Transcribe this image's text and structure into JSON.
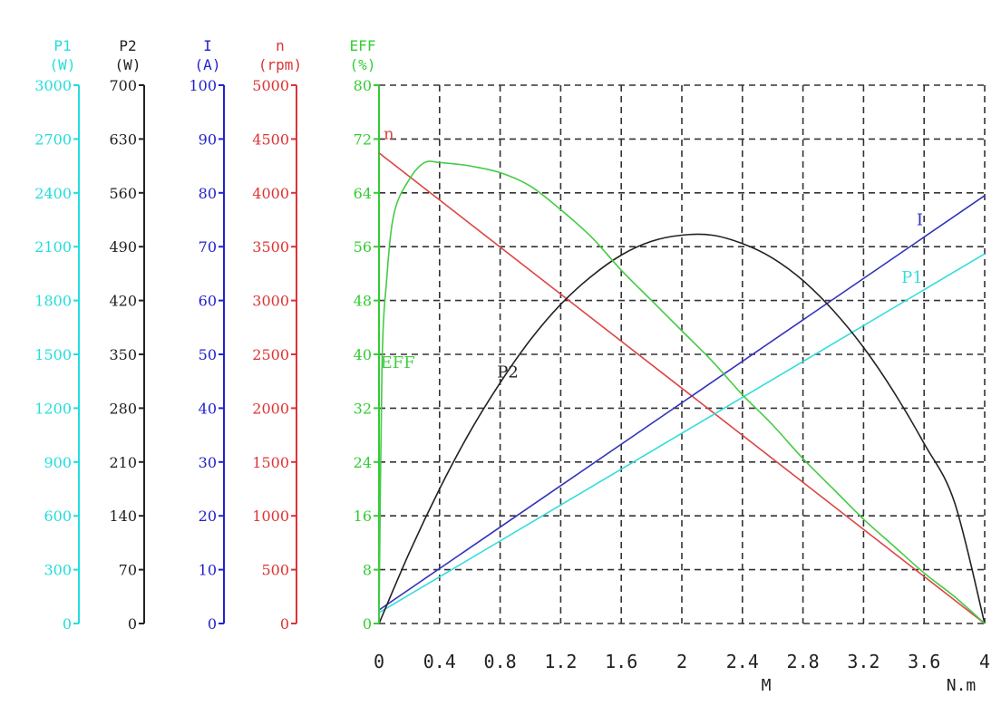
{
  "chart_data": {
    "type": "line",
    "x_label": "M",
    "x_unit_label": "N.m",
    "xlim": [
      0,
      4
    ],
    "x_ticks": [
      0,
      0.4,
      0.8,
      1.2,
      1.6,
      2,
      2.4,
      2.8,
      3.2,
      3.6,
      4
    ],
    "x_tick_labels": [
      "0",
      "0.4",
      "0.8",
      "1.2",
      "1.6",
      "2",
      "2.4",
      "2.8",
      "3.2",
      "3.6",
      "4"
    ],
    "grid": true,
    "axes": [
      {
        "id": "P1",
        "name": "P1",
        "unit": "(W)",
        "color": "#22dddd",
        "range": [
          0,
          3000
        ],
        "ticks": [
          0,
          300,
          600,
          900,
          1200,
          1500,
          1800,
          2100,
          2400,
          2700,
          3000
        ]
      },
      {
        "id": "P2",
        "name": "P2",
        "unit": "(W)",
        "color": "#222222",
        "range": [
          0,
          700
        ],
        "ticks": [
          0,
          70,
          140,
          210,
          280,
          350,
          420,
          490,
          560,
          630,
          700
        ]
      },
      {
        "id": "I",
        "name": "I",
        "unit": "(A)",
        "color": "#2222cc",
        "range": [
          0,
          100
        ],
        "ticks": [
          0,
          10,
          20,
          30,
          40,
          50,
          60,
          70,
          80,
          90,
          100
        ]
      },
      {
        "id": "n",
        "name": "n",
        "unit": "(rpm)",
        "color": "#dd3333",
        "range": [
          0,
          5000
        ],
        "ticks": [
          0,
          500,
          1000,
          1500,
          2000,
          2500,
          3000,
          3500,
          4000,
          4500,
          5000
        ]
      },
      {
        "id": "EFF",
        "name": "EFF",
        "unit": "(%)",
        "color": "#33cc33",
        "range": [
          0,
          80
        ],
        "ticks": [
          0,
          8,
          16,
          24,
          32,
          40,
          48,
          56,
          64,
          72,
          80
        ]
      }
    ],
    "series": [
      {
        "name": "n",
        "axis": "n",
        "color": "#dd4444",
        "x": [
          0,
          4
        ],
        "y": [
          4370,
          0
        ]
      },
      {
        "name": "I",
        "axis": "I",
        "color": "#3333bb",
        "x": [
          0,
          4
        ],
        "y": [
          2.5,
          79.5
        ]
      },
      {
        "name": "P1",
        "axis": "P1",
        "color": "#33dddd",
        "x": [
          0,
          4
        ],
        "y": [
          60,
          2060
        ]
      },
      {
        "name": "P2",
        "axis": "P2",
        "color": "#222222",
        "x": [
          0,
          0.2,
          0.4,
          0.6,
          0.8,
          1.0,
          1.2,
          1.4,
          1.6,
          1.8,
          2.0,
          2.2,
          2.4,
          2.6,
          2.8,
          3.0,
          3.2,
          3.4,
          3.6,
          3.8,
          4.0
        ],
        "y": [
          0,
          92,
          175,
          249,
          313,
          369,
          415,
          451,
          479,
          497,
          505,
          505,
          494,
          475,
          446,
          407,
          359,
          301,
          234,
          158,
          0
        ]
      },
      {
        "name": "EFF",
        "axis": "EFF",
        "color": "#44cc44",
        "x": [
          0,
          0.02,
          0.05,
          0.1,
          0.2,
          0.3,
          0.4,
          0.5,
          0.6,
          0.8,
          1.0,
          1.2,
          1.4,
          1.6,
          1.8,
          2.0,
          2.2,
          2.4,
          2.6,
          2.8,
          3.0,
          3.2,
          3.4,
          3.6,
          3.8,
          4.0
        ],
        "y": [
          0,
          38,
          51,
          61,
          66,
          68.5,
          68.5,
          68.3,
          68,
          67,
          65,
          61.5,
          57.5,
          52.5,
          48,
          43.5,
          39,
          34,
          29.5,
          24.5,
          20,
          15.5,
          11.5,
          7.5,
          4,
          0
        ]
      }
    ],
    "series_labels": [
      {
        "text": "n",
        "series": "n",
        "x": 0.03,
        "y_value": 4500
      },
      {
        "text": "I",
        "series": "I",
        "x": 3.55,
        "y_value": 74
      },
      {
        "text": "P1",
        "series": "P1",
        "x": 3.45,
        "y_value": 1900
      },
      {
        "text": "P2",
        "series": "P2",
        "x": 0.78,
        "y_value": 320
      },
      {
        "text": "EFF",
        "series": "EFF",
        "x": 0.01,
        "y_value": 38
      }
    ]
  }
}
